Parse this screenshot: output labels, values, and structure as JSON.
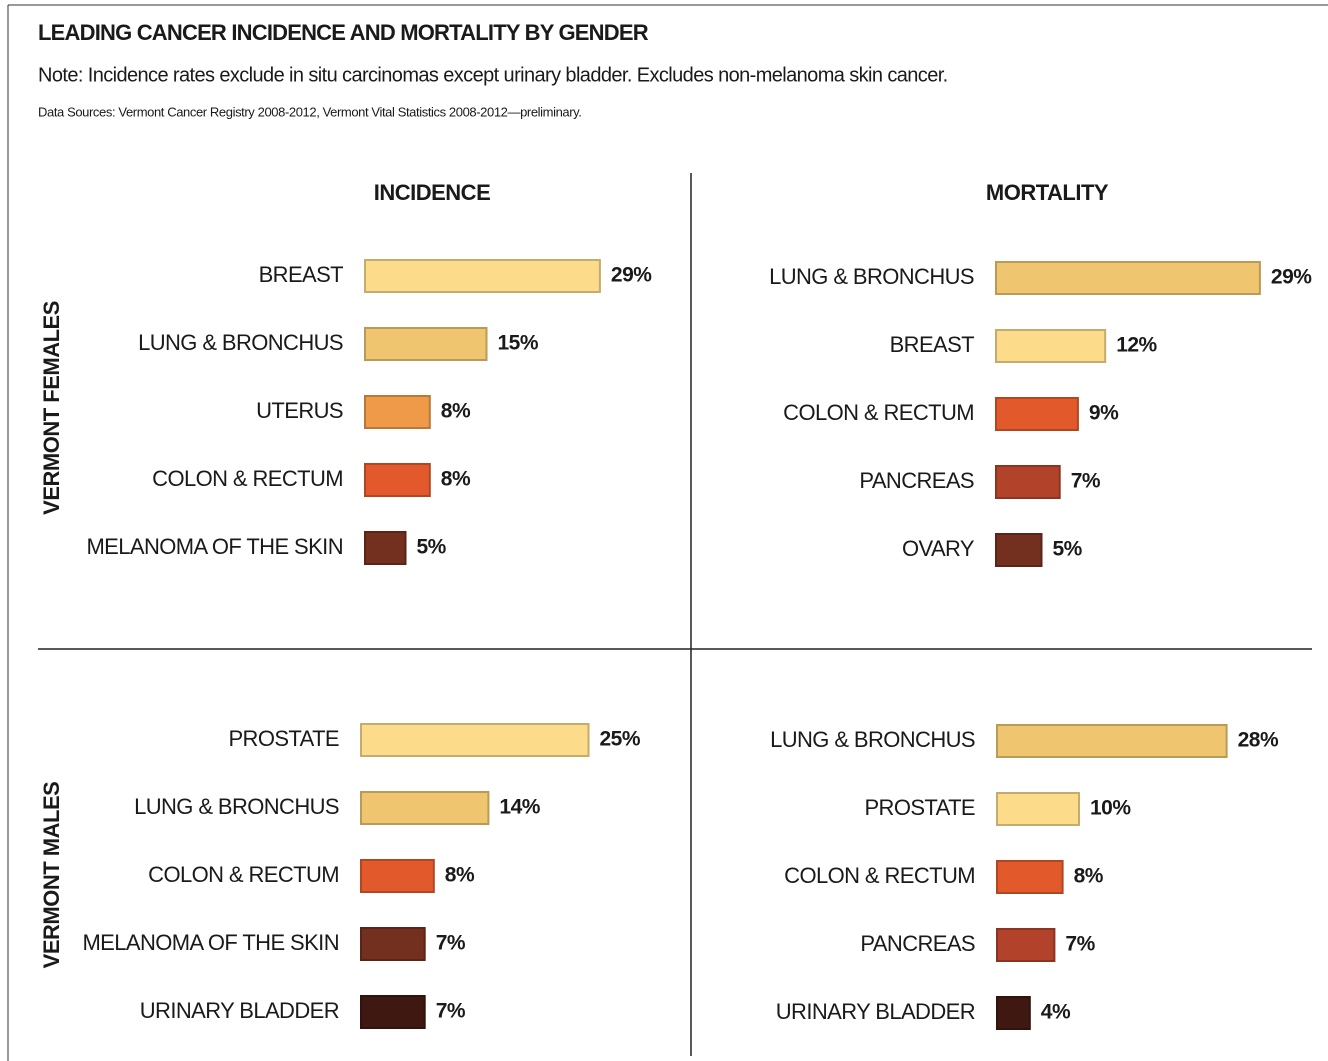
{
  "header": {
    "title": "LEADING CANCER INCIDENCE AND MORTALITY BY GENDER",
    "note": "Note: Incidence rates exclude in situ carcinomas except urinary bladder. Excludes non-melanoma skin cancer.",
    "sources": "Data Sources: Vermont Cancer Registry 2008-2012, Vermont Vital Statistics 2008-2012—preliminary."
  },
  "columns": [
    "INCIDENCE",
    "MORTALITY"
  ],
  "rows": [
    "VERMONT FEMALES",
    "VERMONT MALES"
  ],
  "chart_data": [
    {
      "type": "bar",
      "categories": [
        "BREAST",
        "LUNG & BRONCHUS",
        "UTERUS",
        "COLON & RECTUM",
        "MELANOMA OF THE SKIN"
      ],
      "values": [
        29,
        15,
        8,
        8,
        5
      ],
      "value_labels": [
        "29%",
        "15%",
        "8%",
        "8%",
        "5%"
      ],
      "colors": [
        "#fcdb8a",
        "#efc66f",
        "#ee9a48",
        "#e25a2c",
        "#73301f"
      ]
    },
    {
      "type": "bar",
      "categories": [
        "LUNG & BRONCHUS",
        "BREAST",
        "COLON & RECTUM",
        "PANCREAS",
        "OVARY"
      ],
      "values": [
        29,
        12,
        9,
        7,
        5
      ],
      "value_labels": [
        "29%",
        "12%",
        "9%",
        "7%",
        "5%"
      ],
      "colors": [
        "#efc66f",
        "#fcdb8a",
        "#e25a2c",
        "#b2432a",
        "#73301f"
      ]
    },
    {
      "type": "bar",
      "categories": [
        "PROSTATE",
        "LUNG & BRONCHUS",
        "COLON & RECTUM",
        "MELANOMA OF THE SKIN",
        "URINARY BLADDER"
      ],
      "values": [
        25,
        14,
        8,
        7,
        7
      ],
      "value_labels": [
        "25%",
        "14%",
        "8%",
        "7%",
        "7%"
      ],
      "colors": [
        "#fcdb8a",
        "#efc66f",
        "#e25a2c",
        "#73301f",
        "#3f1811"
      ]
    },
    {
      "type": "bar",
      "categories": [
        "LUNG & BRONCHUS",
        "PROSTATE",
        "COLON & RECTUM",
        "PANCREAS",
        "URINARY BLADDER"
      ],
      "values": [
        28,
        10,
        8,
        7,
        4
      ],
      "value_labels": [
        "28%",
        "10%",
        "8%",
        "7%",
        "4%"
      ],
      "colors": [
        "#efc66f",
        "#fcdb8a",
        "#e25a2c",
        "#b2432a",
        "#3f1811"
      ]
    }
  ]
}
